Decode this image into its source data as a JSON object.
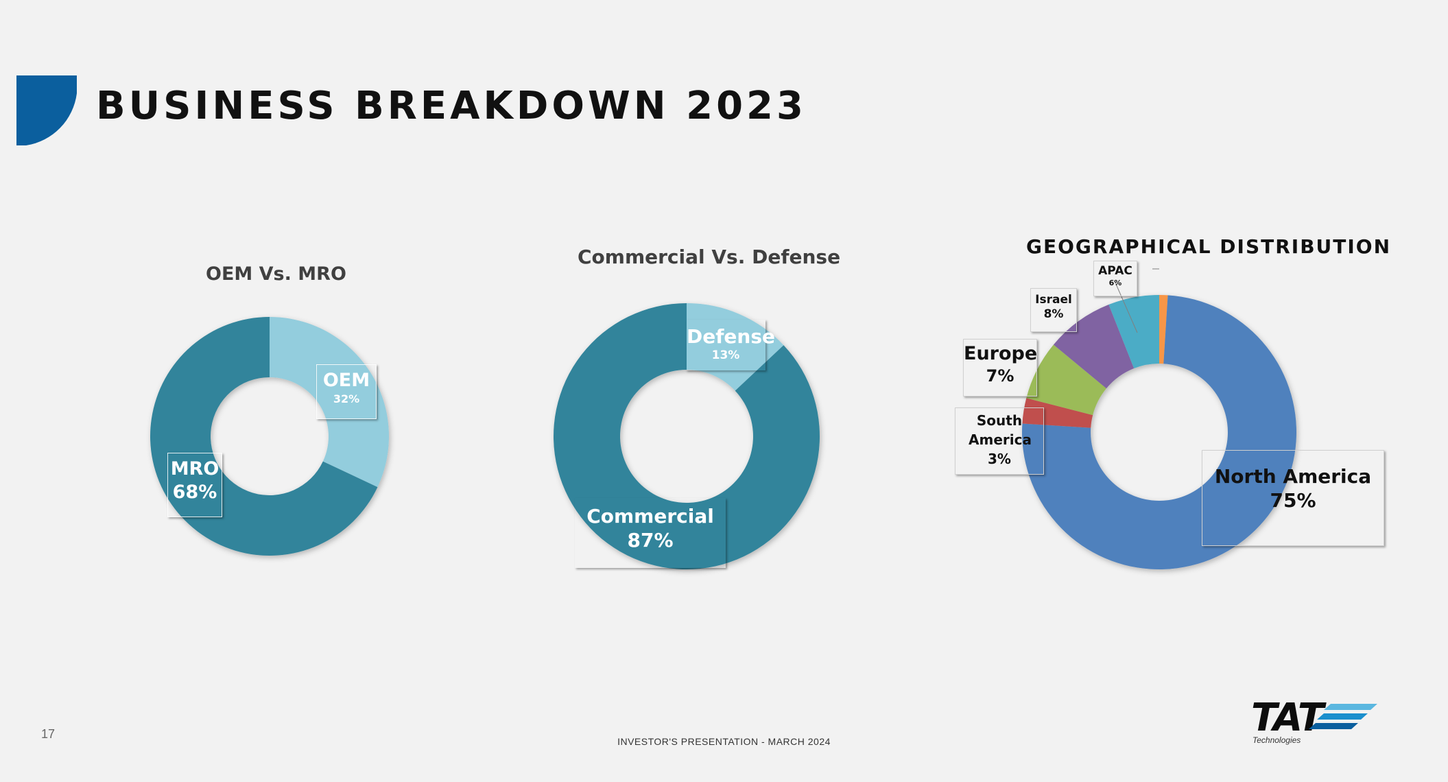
{
  "slide": {
    "title": "BUSINESS BREAKDOWN 2023",
    "page_number": "17",
    "footer": "INVESTOR'S PRESENTATION - MARCH 2024",
    "logo_text": "TAT",
    "logo_sub": "Technologies",
    "accent_color": "#0b5f9e"
  },
  "chart_data": [
    {
      "type": "pie",
      "variant": "donut",
      "title": "OEM Vs. MRO",
      "slices": [
        {
          "label": "OEM",
          "value": 32,
          "value_label": "32%",
          "color": "#93cddd"
        },
        {
          "label": "MRO",
          "value": 68,
          "value_label": "68%",
          "color": "#31849b"
        }
      ]
    },
    {
      "type": "pie",
      "variant": "donut",
      "title": "Commercial Vs. Defense",
      "slices": [
        {
          "label": "Defense",
          "value": 13,
          "value_label": "13%",
          "color": "#93cddd"
        },
        {
          "label": "Commercial",
          "value": 87,
          "value_label": "87%",
          "color": "#31849b"
        }
      ]
    },
    {
      "type": "pie",
      "variant": "donut",
      "title": "GEOGRAPHICAL  DISTRIBUTION",
      "slices": [
        {
          "label": "APAC",
          "value": 6,
          "value_label": "6%",
          "color": "#4bacc6"
        },
        {
          "label": "Israel",
          "value": 8,
          "value_label": "8%",
          "color": "#8064a2"
        },
        {
          "label": "Europe",
          "value": 7,
          "value_label": "7%",
          "color": "#9bbb59"
        },
        {
          "label": "South America",
          "value": 3,
          "value_label": "3%",
          "color": "#c0504d"
        },
        {
          "label": "North America",
          "value": 75,
          "value_label": "75%",
          "color": "#4f81bd"
        },
        {
          "label": "",
          "value": 1,
          "value_label": "",
          "color": "#f79646"
        }
      ]
    }
  ]
}
